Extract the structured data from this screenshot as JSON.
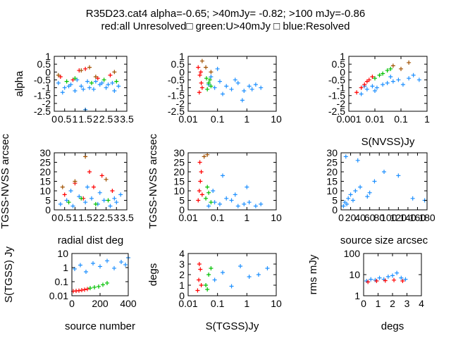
{
  "title": {
    "line1": "R35D23.cat4 alpha=-0.65; >40mJy= -0.82; >100 mJy=-0.86",
    "line2": "red:all Unresolved□ green:U>40mJy □ blue:Resolved"
  },
  "colors": {
    "red": "#ff0000",
    "green": "#00c000",
    "blue": "#1e90ff",
    "olive": "#a05000"
  },
  "chart_data": [
    {
      "type": "scatter",
      "xlabel": "",
      "ylabel": "alpha",
      "xlim": [
        0,
        3.5
      ],
      "ylim": [
        -2.5,
        1
      ],
      "xscale": "linear",
      "yscale": "linear",
      "xticks": [
        "0",
        "0.5",
        "1",
        "1.5",
        "2",
        "2.5",
        "3",
        "3.5"
      ],
      "yticks": [
        "-2.5",
        "-2",
        "-1.5",
        "-1",
        "-0.5",
        "0",
        "0.5",
        "1"
      ],
      "series": [
        {
          "color": "blue",
          "x": [
            0.2,
            0.5,
            0.8,
            1.0,
            1.3,
            1.6,
            1.9,
            2.2,
            2.5,
            2.8,
            3.1,
            0.4,
            1.1,
            1.7,
            2.3,
            2.9,
            0.7,
            1.4,
            2.0,
            2.6,
            1.5
          ],
          "y": [
            -0.7,
            -1.0,
            -0.8,
            -1.2,
            -0.9,
            -0.6,
            -1.1,
            -0.8,
            -1.0,
            -0.7,
            -0.9,
            -1.3,
            -0.5,
            -1.0,
            -0.7,
            -1.2,
            -0.9,
            -1.1,
            -0.6,
            -0.8,
            -2.4
          ]
        },
        {
          "color": "red",
          "x": [
            0.3,
            0.9,
            1.5,
            2.1,
            2.7,
            1.2
          ],
          "y": [
            -0.3,
            -0.5,
            0.2,
            -0.4,
            -0.2,
            0.1
          ]
        },
        {
          "color": "green",
          "x": [
            0.6,
            1.0,
            1.8,
            2.4,
            3.0
          ],
          "y": [
            -0.6,
            -0.4,
            -0.7,
            -0.5,
            -0.6
          ]
        },
        {
          "color": "olive",
          "x": [
            0.2,
            1.3,
            2.0,
            2.9,
            1.7
          ],
          "y": [
            -0.2,
            0.1,
            -0.3,
            0.0,
            0.3
          ]
        }
      ]
    },
    {
      "type": "scatter",
      "xlabel": "",
      "ylabel": "",
      "xlim": [
        0.01,
        10
      ],
      "ylim": [
        -2.5,
        1
      ],
      "xscale": "log",
      "yscale": "linear",
      "xticks": [
        "0.01",
        "0.1",
        "1",
        "10"
      ],
      "yticks": [
        "-2.5",
        "-2",
        "-1.5",
        "-1",
        "-0.5",
        "0",
        "0.5",
        "1"
      ],
      "series": [
        {
          "color": "blue",
          "x": [
            0.05,
            0.08,
            0.12,
            0.2,
            0.3,
            0.5,
            0.8,
            1.2,
            2,
            3,
            0.06,
            0.1,
            0.15,
            0.4,
            0.7,
            1.5
          ],
          "y": [
            -0.8,
            -1.0,
            -0.6,
            -0.9,
            -1.1,
            -0.7,
            -1.2,
            -0.9,
            -0.8,
            -1.0,
            -0.3,
            0.2,
            -1.4,
            -0.5,
            -1.8,
            -1.1
          ]
        },
        {
          "color": "red",
          "x": [
            0.022,
            0.025,
            0.028,
            0.03,
            0.024,
            0.027
          ],
          "y": [
            0.3,
            -0.2,
            -0.7,
            -1.0,
            -1.3,
            0.0
          ]
        },
        {
          "color": "green",
          "x": [
            0.042,
            0.05,
            0.06,
            0.045,
            0.055
          ],
          "y": [
            -0.4,
            -0.7,
            -0.9,
            -1.1,
            -0.5
          ]
        },
        {
          "color": "olive",
          "x": [
            0.03,
            0.04,
            0.06
          ],
          "y": [
            0.7,
            0.3,
            0.0
          ]
        }
      ]
    },
    {
      "type": "scatter",
      "xlabel": "S(NVSS)Jy",
      "ylabel": "",
      "xlim": [
        0.001,
        1
      ],
      "ylim": [
        -2.5,
        1
      ],
      "xscale": "log",
      "yscale": "linear",
      "xticks": [
        "0.001",
        "0.01",
        "0.1",
        "1"
      ],
      "yticks": [
        "-2.5",
        "-2",
        "-1.5",
        "-1",
        "-0.5",
        "0",
        "0.5",
        "1"
      ],
      "series": [
        {
          "color": "blue",
          "x": [
            0.003,
            0.005,
            0.008,
            0.012,
            0.02,
            0.03,
            0.05,
            0.08,
            0.12,
            0.2,
            0.3,
            0.5,
            0.004,
            0.01,
            0.04
          ],
          "y": [
            -1.4,
            -1.1,
            -0.9,
            -1.0,
            -0.8,
            -0.7,
            -0.6,
            -0.5,
            -0.8,
            -0.4,
            -0.2,
            -0.5,
            -0.9,
            -1.2,
            -0.3
          ]
        },
        {
          "color": "red",
          "x": [
            0.002,
            0.003,
            0.004,
            0.005,
            0.006,
            0.008
          ],
          "y": [
            -1.3,
            -1.0,
            -0.8,
            -0.6,
            -0.5,
            -0.3
          ]
        },
        {
          "color": "green",
          "x": [
            0.01,
            0.015,
            0.02,
            0.03,
            0.04
          ],
          "y": [
            -0.4,
            -0.2,
            -0.1,
            0.1,
            0.2
          ]
        },
        {
          "color": "olive",
          "x": [
            0.05,
            0.1,
            0.2
          ],
          "y": [
            0.4,
            0.2,
            0.6
          ]
        }
      ]
    },
    {
      "type": "scatter",
      "xlabel": "radial dist deg",
      "ylabel": "TGSS-NVSS arcsec",
      "xlim": [
        0,
        3.5
      ],
      "ylim": [
        0,
        30
      ],
      "xscale": "linear",
      "yscale": "linear",
      "xticks": [
        "0",
        "0.5",
        "1",
        "1.5",
        "2",
        "2.5",
        "3",
        "3.5"
      ],
      "yticks": [
        "0",
        "5",
        "10",
        "15",
        "20",
        "25",
        "30"
      ],
      "series": [
        {
          "color": "blue",
          "x": [
            0.3,
            0.6,
            0.9,
            1.2,
            1.5,
            1.8,
            2.1,
            2.4,
            2.7,
            3.0,
            3.2,
            0.8,
            1.6,
            2.2,
            2.9
          ],
          "y": [
            3,
            5,
            2,
            7,
            4,
            6,
            3,
            5,
            2,
            4,
            8,
            10,
            12,
            9,
            6
          ]
        },
        {
          "color": "red",
          "x": [
            0.5,
            1.0,
            1.4,
            1.9,
            2.3,
            2.8,
            1.7
          ],
          "y": [
            8,
            14,
            6,
            12,
            18,
            10,
            20
          ]
        },
        {
          "color": "green",
          "x": [
            0.7,
            1.3,
            2.0,
            2.6
          ],
          "y": [
            4,
            6,
            3,
            5
          ]
        },
        {
          "color": "olive",
          "x": [
            1.0,
            1.5,
            2.5,
            0.4
          ],
          "y": [
            15,
            28,
            16,
            12
          ]
        }
      ]
    },
    {
      "type": "scatter",
      "xlabel": "",
      "ylabel": "TGSS-NVSS arcsec",
      "xlim": [
        0.01,
        10
      ],
      "ylim": [
        0,
        30
      ],
      "xscale": "log",
      "yscale": "linear",
      "xticks": [
        "0.01",
        "0.1",
        "1",
        "10"
      ],
      "yticks": [
        "0",
        "5",
        "10",
        "15",
        "20",
        "25",
        "30"
      ],
      "series": [
        {
          "color": "blue",
          "x": [
            0.05,
            0.08,
            0.12,
            0.2,
            0.3,
            0.5,
            0.8,
            1.2,
            2,
            3,
            0.07,
            0.15,
            0.4,
            1.0
          ],
          "y": [
            2,
            4,
            3,
            6,
            5,
            2,
            3,
            4,
            2,
            3,
            10,
            18,
            8,
            12
          ]
        },
        {
          "color": "red",
          "x": [
            0.022,
            0.024,
            0.026,
            0.028,
            0.025,
            0.03
          ],
          "y": [
            5,
            10,
            15,
            20,
            25,
            8
          ]
        },
        {
          "color": "green",
          "x": [
            0.04,
            0.05,
            0.06,
            0.045
          ],
          "y": [
            6,
            9,
            4,
            12
          ]
        },
        {
          "color": "olive",
          "x": [
            0.035,
            0.045
          ],
          "y": [
            28,
            29
          ]
        }
      ]
    },
    {
      "type": "scatter",
      "xlabel": "source size arcsec",
      "ylabel": "",
      "xlim": [
        0,
        180
      ],
      "ylim": [
        0,
        30
      ],
      "xscale": "linear",
      "yscale": "linear",
      "xticks": [
        "0",
        "20",
        "40",
        "60",
        "80",
        "100",
        "120",
        "140",
        "160",
        "180"
      ],
      "yticks": [
        "0",
        "5",
        "10",
        "15",
        "20",
        "25",
        "30"
      ],
      "series": [
        {
          "color": "blue",
          "x": [
            5,
            8,
            12,
            15,
            20,
            25,
            30,
            40,
            55,
            70,
            90,
            120,
            150,
            175,
            10,
            35,
            60
          ],
          "y": [
            2,
            4,
            3,
            6,
            8,
            5,
            10,
            12,
            7,
            15,
            20,
            18,
            6,
            5,
            28,
            26,
            9
          ]
        }
      ]
    },
    {
      "type": "scatter",
      "xlabel": "source number",
      "ylabel": "S(TGSS) Jy",
      "xlim": [
        0,
        400
      ],
      "ylim": [
        0.01,
        10
      ],
      "xscale": "linear",
      "yscale": "log",
      "xticks": [
        "0",
        "200",
        "400"
      ],
      "yticks": [
        "0.01",
        "0.1",
        "1",
        "10"
      ],
      "series": [
        {
          "color": "red",
          "x": [
            10,
            30,
            50,
            70,
            90,
            110
          ],
          "y": [
            0.021,
            0.022,
            0.023,
            0.025,
            0.027,
            0.03
          ]
        },
        {
          "color": "green",
          "x": [
            130,
            160,
            190,
            220,
            250
          ],
          "y": [
            0.035,
            0.04,
            0.045,
            0.06,
            0.08
          ]
        },
        {
          "color": "blue",
          "x": [
            20,
            60,
            100,
            150,
            200,
            250,
            300,
            350,
            380,
            400
          ],
          "y": [
            0.8,
            1.5,
            0.5,
            2,
            1.2,
            3,
            0.9,
            2.5,
            1.6,
            5
          ]
        }
      ]
    },
    {
      "type": "scatter",
      "xlabel": "S(TGSS)Jy",
      "ylabel": "degs",
      "xlim": [
        0.01,
        10
      ],
      "ylim": [
        0,
        4
      ],
      "xscale": "log",
      "yscale": "linear",
      "xticks": [
        "0.01",
        "0.1",
        "1",
        "10"
      ],
      "yticks": [
        "0",
        "1",
        "2",
        "3",
        "4"
      ],
      "series": [
        {
          "color": "red",
          "x": [
            0.021,
            0.023,
            0.026,
            0.028,
            0.024
          ],
          "y": [
            0.5,
            1.5,
            2.5,
            1.0,
            3.0
          ]
        },
        {
          "color": "green",
          "x": [
            0.04,
            0.05,
            0.06,
            0.045
          ],
          "y": [
            1.0,
            2.0,
            2.6,
            0.6
          ]
        },
        {
          "color": "blue",
          "x": [
            0.08,
            0.15,
            0.3,
            0.6,
            1.2,
            2.5,
            5
          ],
          "y": [
            1.5,
            2.2,
            0.9,
            2.8,
            1.8,
            2.0,
            2.6
          ]
        }
      ]
    },
    {
      "type": "scatter",
      "xlabel": "degs",
      "ylabel": "rms mJy",
      "xlim": [
        0,
        4
      ],
      "ylim": [
        1,
        100
      ],
      "xscale": "linear",
      "yscale": "log",
      "xticks": [
        "0",
        "1",
        "2",
        "3",
        "4"
      ],
      "yticks": [
        "1",
        "10",
        "100"
      ],
      "series": [
        {
          "color": "blue",
          "x": [
            0.2,
            0.5,
            0.8,
            1.1,
            1.4,
            1.7,
            2.0,
            2.3,
            2.6,
            2.9
          ],
          "y": [
            5,
            6,
            5.5,
            7,
            6,
            8,
            9,
            12,
            7,
            6
          ]
        },
        {
          "color": "red",
          "x": [
            0.3,
            0.9,
            1.5,
            2.1,
            2.7
          ],
          "y": [
            4.5,
            5,
            5.2,
            5.5,
            5
          ]
        }
      ]
    }
  ]
}
